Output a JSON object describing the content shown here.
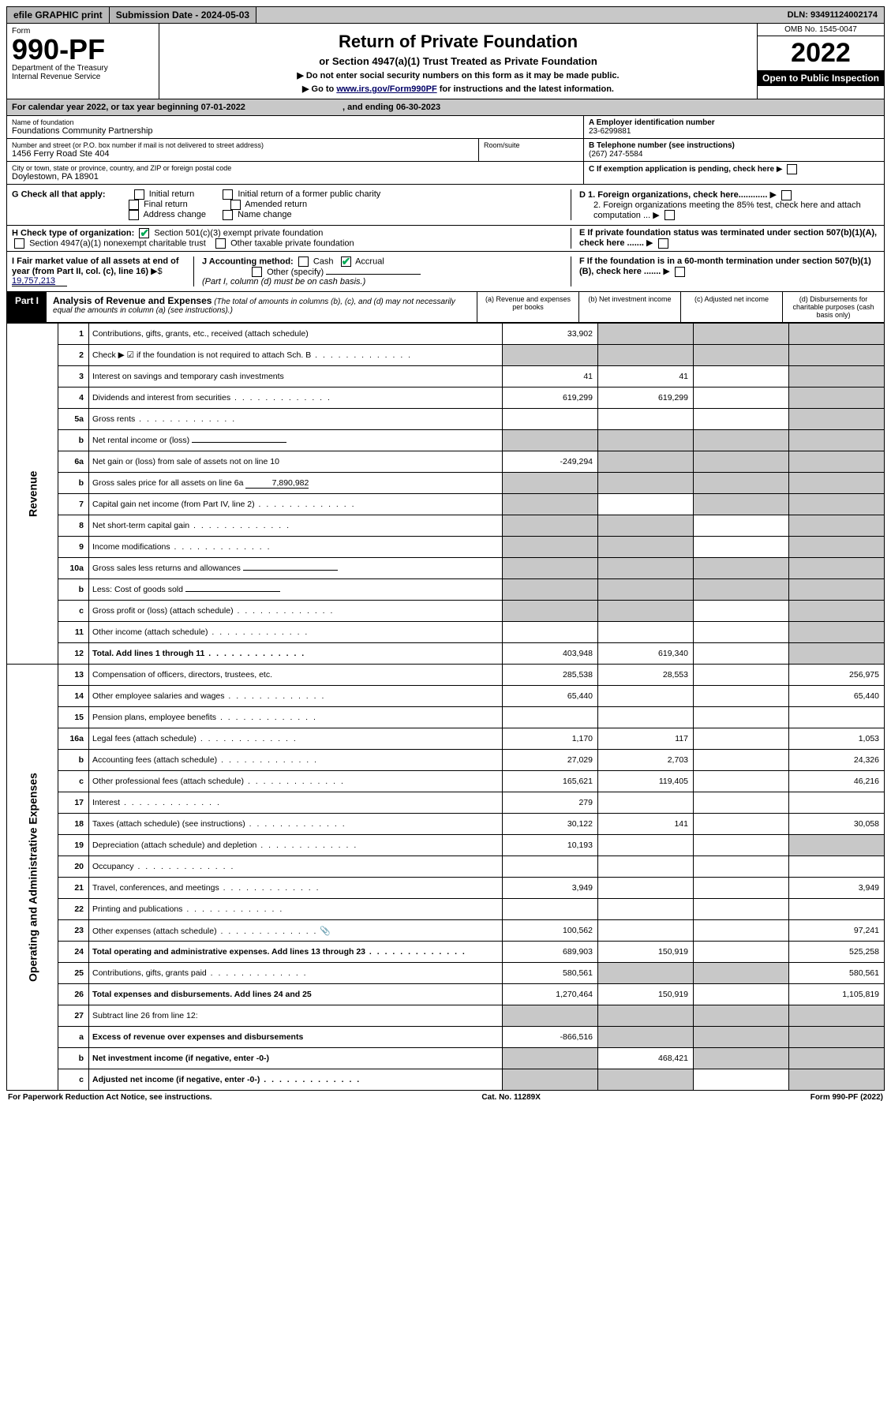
{
  "topbar": {
    "efile": "efile GRAPHIC print",
    "submission": "Submission Date - 2024-05-03",
    "dln": "DLN: 93491124002174"
  },
  "header": {
    "form_word": "Form",
    "form_num": "990-PF",
    "dept": "Department of the Treasury",
    "irs": "Internal Revenue Service",
    "title": "Return of Private Foundation",
    "subtitle": "or Section 4947(a)(1) Trust Treated as Private Foundation",
    "instr1": "▶ Do not enter social security numbers on this form as it may be made public.",
    "instr2_pre": "▶ Go to ",
    "instr2_link": "www.irs.gov/Form990PF",
    "instr2_post": " for instructions and the latest information.",
    "omb": "OMB No. 1545-0047",
    "year": "2022",
    "open": "Open to Public Inspection"
  },
  "calendar": {
    "text_pre": "For calendar year 2022, or tax year beginning ",
    "begin": "07-01-2022",
    "text_mid": " , and ending ",
    "end": "06-30-2023"
  },
  "entity": {
    "name_lbl": "Name of foundation",
    "name": "Foundations Community Partnership",
    "addr_lbl": "Number and street (or P.O. box number if mail is not delivered to street address)",
    "addr": "1456 Ferry Road Ste 404",
    "room_lbl": "Room/suite",
    "city_lbl": "City or town, state or province, country, and ZIP or foreign postal code",
    "city": "Doylestown, PA  18901",
    "ein_lbl": "A Employer identification number",
    "ein": "23-6299881",
    "tel_lbl": "B Telephone number (see instructions)",
    "tel": "(267) 247-5584",
    "c_lbl": "C If exemption application is pending, check here",
    "d1": "D 1. Foreign organizations, check here............",
    "d2": "2. Foreign organizations meeting the 85% test, check here and attach computation ...",
    "e_lbl": "E  If private foundation status was terminated under section 507(b)(1)(A), check here .......",
    "f_lbl": "F  If the foundation is in a 60-month termination under section 507(b)(1)(B), check here .......",
    "g_lbl": "G Check all that apply:",
    "g_opts": [
      "Initial return",
      "Final return",
      "Address change",
      "Initial return of a former public charity",
      "Amended return",
      "Name change"
    ],
    "h_lbl": "H Check type of organization:",
    "h1": "Section 501(c)(3) exempt private foundation",
    "h2": "Section 4947(a)(1) nonexempt charitable trust",
    "h3": "Other taxable private foundation",
    "i_lbl": "I Fair market value of all assets at end of year (from Part II, col. (c), line 16)",
    "i_val": "19,757,213",
    "j_lbl": "J Accounting method:",
    "j_cash": "Cash",
    "j_accr": "Accrual",
    "j_other": "Other (specify)",
    "j_note": "(Part I, column (d) must be on cash basis.)"
  },
  "part1": {
    "label": "Part I",
    "title": "Analysis of Revenue and Expenses",
    "note": "(The total of amounts in columns (b), (c), and (d) may not necessarily equal the amounts in column (a) (see instructions).)",
    "col_a": "(a) Revenue and expenses per books",
    "col_b": "(b) Net investment income",
    "col_c": "(c) Adjusted net income",
    "col_d": "(d) Disbursements for charitable purposes (cash basis only)",
    "vert_rev": "Revenue",
    "vert_exp": "Operating and Administrative Expenses"
  },
  "rows": [
    {
      "n": "1",
      "d": "Contributions, gifts, grants, etc., received (attach schedule)",
      "a": "33,902",
      "b_sh": true,
      "c_sh": true,
      "d_sh": true
    },
    {
      "n": "2",
      "d": "Check ▶ ☑ if the foundation is not required to attach Sch. B",
      "a_sh": true,
      "b_sh": true,
      "c_sh": true,
      "d_sh": true,
      "dots": true
    },
    {
      "n": "3",
      "d": "Interest on savings and temporary cash investments",
      "a": "41",
      "b": "41",
      "d_sh": true
    },
    {
      "n": "4",
      "d": "Dividends and interest from securities",
      "a": "619,299",
      "b": "619,299",
      "d_sh": true,
      "dots": true
    },
    {
      "n": "5a",
      "d": "Gross rents",
      "d_sh": true,
      "dots": true
    },
    {
      "n": "b",
      "d": "Net rental income or (loss)",
      "a_sh": true,
      "b_sh": true,
      "c_sh": true,
      "d_sh": true,
      "uline": true
    },
    {
      "n": "6a",
      "d": "Net gain or (loss) from sale of assets not on line 10",
      "a": "-249,294",
      "b_sh": true,
      "c_sh": true,
      "d_sh": true
    },
    {
      "n": "b",
      "d": "Gross sales price for all assets on line 6a",
      "a_sh": true,
      "b_sh": true,
      "c_sh": true,
      "d_sh": true,
      "inline_val": "7,890,982"
    },
    {
      "n": "7",
      "d": "Capital gain net income (from Part IV, line 2)",
      "a_sh": true,
      "c_sh": true,
      "d_sh": true,
      "dots": true
    },
    {
      "n": "8",
      "d": "Net short-term capital gain",
      "a_sh": true,
      "b_sh": true,
      "d_sh": true,
      "dots": true
    },
    {
      "n": "9",
      "d": "Income modifications",
      "a_sh": true,
      "b_sh": true,
      "d_sh": true,
      "dots": true
    },
    {
      "n": "10a",
      "d": "Gross sales less returns and allowances",
      "a_sh": true,
      "b_sh": true,
      "c_sh": true,
      "d_sh": true,
      "uline": true
    },
    {
      "n": "b",
      "d": "Less: Cost of goods sold",
      "a_sh": true,
      "b_sh": true,
      "c_sh": true,
      "d_sh": true,
      "uline": true,
      "dots": true
    },
    {
      "n": "c",
      "d": "Gross profit or (loss) (attach schedule)",
      "a_sh": true,
      "b_sh": true,
      "d_sh": true,
      "dots": true
    },
    {
      "n": "11",
      "d": "Other income (attach schedule)",
      "d_sh": true,
      "dots": true
    },
    {
      "n": "12",
      "d": "Total. Add lines 1 through 11",
      "a": "403,948",
      "b": "619,340",
      "d_sh": true,
      "bold": true,
      "dots": true
    },
    {
      "n": "13",
      "d": "Compensation of officers, directors, trustees, etc.",
      "a": "285,538",
      "b": "28,553",
      "dcol": "256,975"
    },
    {
      "n": "14",
      "d": "Other employee salaries and wages",
      "a": "65,440",
      "dcol": "65,440",
      "dots": true
    },
    {
      "n": "15",
      "d": "Pension plans, employee benefits",
      "dots": true
    },
    {
      "n": "16a",
      "d": "Legal fees (attach schedule)",
      "a": "1,170",
      "b": "117",
      "dcol": "1,053",
      "dots": true
    },
    {
      "n": "b",
      "d": "Accounting fees (attach schedule)",
      "a": "27,029",
      "b": "2,703",
      "dcol": "24,326",
      "dots": true
    },
    {
      "n": "c",
      "d": "Other professional fees (attach schedule)",
      "a": "165,621",
      "b": "119,405",
      "dcol": "46,216",
      "dots": true
    },
    {
      "n": "17",
      "d": "Interest",
      "a": "279",
      "dots": true
    },
    {
      "n": "18",
      "d": "Taxes (attach schedule) (see instructions)",
      "a": "30,122",
      "b": "141",
      "dcol": "30,058",
      "dots": true
    },
    {
      "n": "19",
      "d": "Depreciation (attach schedule) and depletion",
      "a": "10,193",
      "d_sh": true,
      "dots": true
    },
    {
      "n": "20",
      "d": "Occupancy",
      "dots": true
    },
    {
      "n": "21",
      "d": "Travel, conferences, and meetings",
      "a": "3,949",
      "dcol": "3,949",
      "dots": true
    },
    {
      "n": "22",
      "d": "Printing and publications",
      "dots": true
    },
    {
      "n": "23",
      "d": "Other expenses (attach schedule)",
      "a": "100,562",
      "dcol": "97,241",
      "icon": "📎",
      "dots": true
    },
    {
      "n": "24",
      "d": "Total operating and administrative expenses. Add lines 13 through 23",
      "a": "689,903",
      "b": "150,919",
      "dcol": "525,258",
      "bold": true,
      "dots": true
    },
    {
      "n": "25",
      "d": "Contributions, gifts, grants paid",
      "a": "580,561",
      "b_sh": true,
      "c_sh": true,
      "dcol": "580,561",
      "dots": true
    },
    {
      "n": "26",
      "d": "Total expenses and disbursements. Add lines 24 and 25",
      "a": "1,270,464",
      "b": "150,919",
      "dcol": "1,105,819",
      "bold": true
    },
    {
      "n": "27",
      "d": "Subtract line 26 from line 12:",
      "a_sh": true,
      "b_sh": true,
      "c_sh": true,
      "d_sh": true
    },
    {
      "n": "a",
      "d": "Excess of revenue over expenses and disbursements",
      "a": "-866,516",
      "b_sh": true,
      "c_sh": true,
      "d_sh": true,
      "bold": true
    },
    {
      "n": "b",
      "d": "Net investment income (if negative, enter -0-)",
      "a_sh": true,
      "b": "468,421",
      "c_sh": true,
      "d_sh": true,
      "bold": true
    },
    {
      "n": "c",
      "d": "Adjusted net income (if negative, enter -0-)",
      "a_sh": true,
      "b_sh": true,
      "d_sh": true,
      "bold": true,
      "dots": true
    }
  ],
  "footer": {
    "left": "For Paperwork Reduction Act Notice, see instructions.",
    "mid": "Cat. No. 11289X",
    "right": "Form 990-PF (2022)"
  }
}
